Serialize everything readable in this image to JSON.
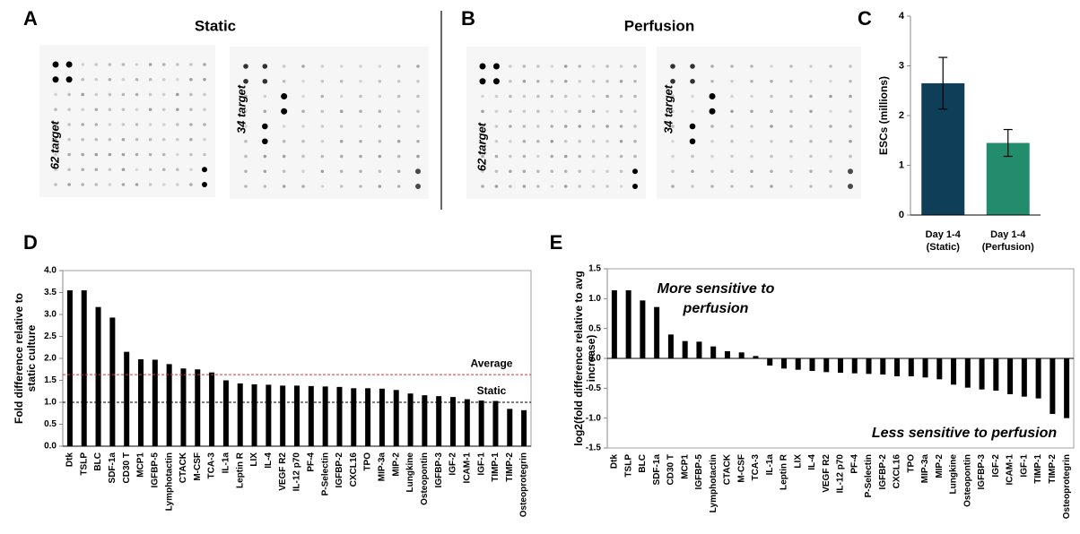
{
  "panel_labels": [
    "A",
    "B",
    "C",
    "D",
    "E"
  ],
  "blots": [
    {
      "title": "Static",
      "labels": [
        "62 target",
        "34 target"
      ]
    },
    {
      "title": "Perfusion",
      "labels": [
        "62 target",
        "34 target"
      ]
    }
  ],
  "chart_data": [
    {
      "type": "bar",
      "ylabel": [
        "ESCs (millions)"
      ],
      "categories": [
        [
          "Day 1-4",
          "(Static)"
        ],
        [
          "Day 1-4",
          "(Perfusion)"
        ]
      ],
      "values": [
        2.65,
        1.45
      ],
      "errors": [
        0.52,
        0.27
      ],
      "colors": [
        "#0f3f58",
        "#238c6c"
      ],
      "ylim": [
        0,
        4
      ],
      "yticks": [
        0,
        1,
        2,
        3,
        4
      ]
    },
    {
      "type": "bar",
      "ylabel": [
        "Fold difference relative to",
        "static culture"
      ],
      "categories": [
        "Dtk",
        "TSLP",
        "BLC",
        "SDF-1a",
        "CD30 T",
        "MCP1",
        "IGFBP-5",
        "Lymphotactin",
        "CTACK",
        "M-CSF",
        "TCA-3",
        "IL-1a",
        "Leptin R",
        "LIX",
        "IL-4",
        "VEGF R2",
        "IL-12 p70",
        "PF-4",
        "P-Selectin",
        "IGFBP-2",
        "CXCL16",
        "TPO",
        "MIP-3a",
        "MIP-2",
        "Lungkine",
        "Osteopontin",
        "IGFBP-3",
        "IGF-2",
        "ICAM-1",
        "IGF-1",
        "TIMP-1",
        "TIMP-2",
        "Osteoprotegrin"
      ],
      "values": [
        3.55,
        3.55,
        3.17,
        2.93,
        2.15,
        1.98,
        1.97,
        1.87,
        1.77,
        1.75,
        1.68,
        1.5,
        1.43,
        1.41,
        1.4,
        1.38,
        1.38,
        1.37,
        1.36,
        1.35,
        1.32,
        1.32,
        1.31,
        1.28,
        1.2,
        1.16,
        1.14,
        1.12,
        1.07,
        1.04,
        1.03,
        0.85,
        0.82
      ],
      "color": "#000000",
      "reference_lines": [
        {
          "name": "Average",
          "value": 1.63,
          "color": "#e03030"
        },
        {
          "name": "Static",
          "value": 1,
          "color": "#000000"
        }
      ],
      "ylim": [
        0,
        4
      ],
      "yticks": [
        {
          "value": 0,
          "label": "0.0"
        },
        0.5,
        {
          "value": 1,
          "label": "1.0"
        },
        1.5,
        {
          "value": 2,
          "label": "2.0"
        },
        2.5,
        {
          "value": 3,
          "label": "3.0"
        },
        3.5,
        {
          "value": 4,
          "label": "4.0"
        }
      ]
    },
    {
      "type": "bar",
      "ylabel": [
        "log2(fold difference relative to avg",
        "increase)"
      ],
      "categories": [
        "Dtk",
        "TSLP",
        "BLC",
        "SDF-1a",
        "CD30 T",
        "MCP1",
        "IGFBP-5",
        "Lymphotactin",
        "CTACK",
        "M-CSF",
        "TCA-3",
        "IL-1a",
        "Leptin R",
        "LIX",
        "IL-4",
        "VEGF R2",
        "IL-12 p70",
        "PF-4",
        "P-Selectin",
        "IGFBP-2",
        "CXCL16",
        "TPO",
        "MIP-3a",
        "MIP-2",
        "Lungkine",
        "Osteopontin",
        "IGFBP-3",
        "IGF-2",
        "ICAM-1",
        "IGF-1",
        "TIMP-1",
        "TIMP-2",
        "Osteoprotegrin"
      ],
      "values": [
        1.14,
        1.14,
        0.97,
        0.86,
        0.4,
        0.29,
        0.28,
        0.2,
        0.12,
        0.1,
        0.04,
        -0.12,
        -0.17,
        -0.19,
        -0.21,
        -0.23,
        -0.24,
        -0.25,
        -0.26,
        -0.27,
        -0.3,
        -0.3,
        -0.32,
        -0.35,
        -0.44,
        -0.49,
        -0.52,
        -0.54,
        -0.6,
        -0.64,
        -0.67,
        -0.93,
        -1.0
      ],
      "color": "#000000",
      "annotations": [
        {
          "text": [
            "More sensitive to",
            "perfusion"
          ],
          "color": "#2b9a76"
        },
        {
          "text": [
            "Less sensitive to perfusion"
          ],
          "color": "#2b9a76"
        }
      ],
      "ylim": [
        -1.5,
        1.5
      ],
      "yticks": [
        -1.5,
        {
          "value": -1,
          "label": "-1.0"
        },
        -0.5,
        {
          "value": 0,
          "label": "0.0"
        },
        0.5,
        {
          "value": 1,
          "label": "1.0"
        },
        1.5
      ]
    }
  ]
}
